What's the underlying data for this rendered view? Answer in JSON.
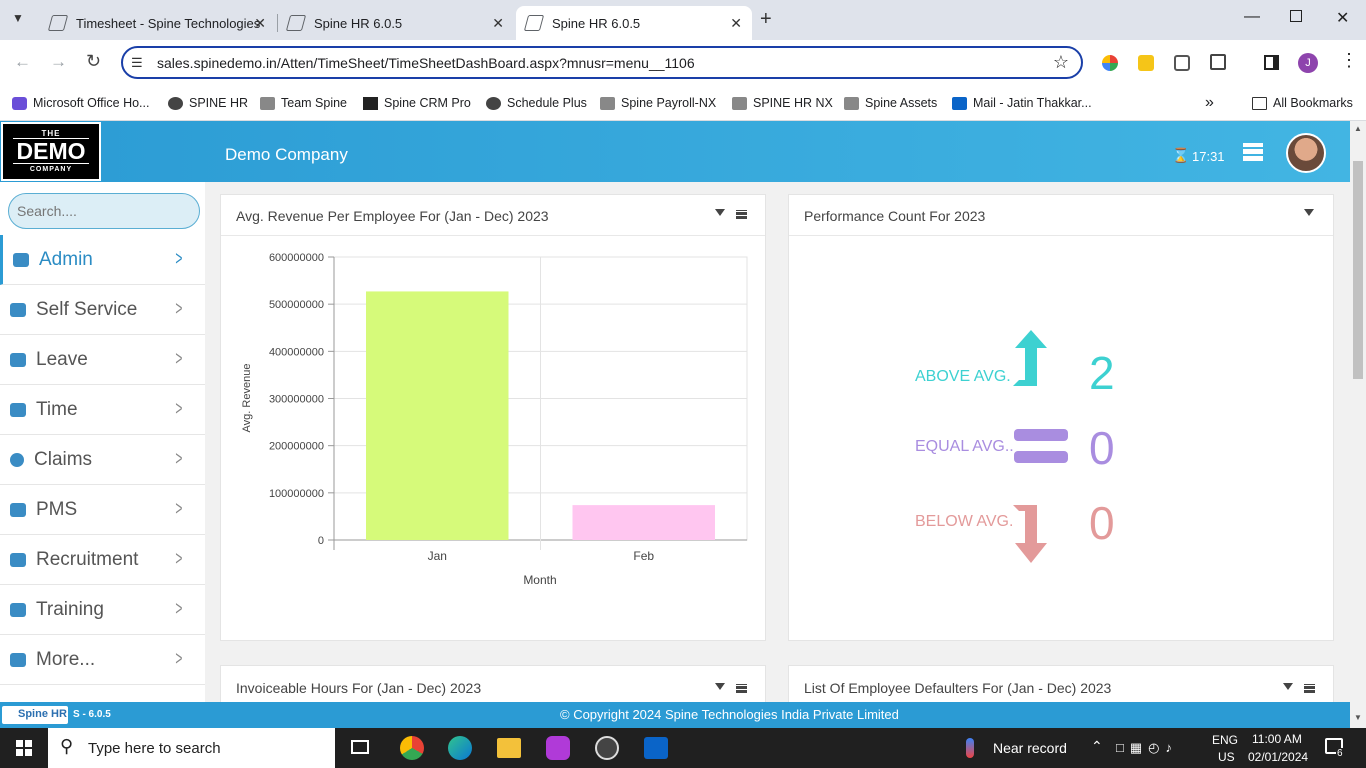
{
  "browser": {
    "tabs": [
      {
        "title": "Timesheet - Spine Technologies",
        "active": false
      },
      {
        "title": "Spine HR 6.0.5",
        "active": false
      },
      {
        "title": "Spine HR 6.0.5",
        "active": true
      }
    ],
    "url": "sales.spinedemo.in/Atten/TimeSheet/TimeSheetDashBoard.aspx?mnusr=menu__1106",
    "profile_initial": "J",
    "bookmarks": [
      "Microsoft Office Ho...",
      "SPINE HR",
      "Team Spine",
      "Spine CRM Pro",
      "Schedule Plus",
      "Spine Payroll-NX",
      "SPINE HR NX",
      "Spine Assets",
      "Mail - Jatin Thakkar..."
    ],
    "all_bookmarks": "All Bookmarks"
  },
  "app": {
    "logo_top": "THE",
    "logo_main": "DEMO",
    "logo_bottom": "COMPANY",
    "company": "Demo Company",
    "timer": "17:31",
    "search_placeholder": "Search....",
    "nav": [
      "Admin",
      "Self Service",
      "Leave",
      "Time",
      "Claims",
      "PMS",
      "Recruitment",
      "Training",
      "More..."
    ],
    "footer_brand": "Spine HR",
    "footer_version": "S - 6.0.5",
    "footer_copyright": "© Copyright 2024 Spine Technologies India Private Limited"
  },
  "cards": {
    "revenue_title": "Avg. Revenue Per Employee For (Jan - Dec) 2023",
    "performance_title": "Performance Count For 2023",
    "invoiceable_title": "Invoiceable Hours For (Jan - Dec) 2023",
    "defaulters_title": "List Of Employee Defaulters For (Jan - Dec) 2023"
  },
  "chart_data": {
    "type": "bar",
    "categories": [
      "Jan",
      "Feb"
    ],
    "values": [
      527000000,
      74000000
    ],
    "colors": [
      "#d6fa7a",
      "#ffc6f0"
    ],
    "xlabel": "Month",
    "ylabel": "Avg. Revenue",
    "ylim": [
      0,
      600000000
    ],
    "yticks": [
      "0",
      "100000000",
      "200000000",
      "300000000",
      "400000000",
      "500000000",
      "600000000"
    ],
    "grid": true
  },
  "performance": {
    "above_label": "ABOVE AVG.",
    "above_value": "2",
    "equal_label": "EQUAL AVG..",
    "equal_value": "0",
    "below_label": "BELOW AVG.",
    "below_value": "0",
    "above_color": "#3dd1d1",
    "equal_color": "#a98de0",
    "below_color": "#e39a9a"
  },
  "taskbar": {
    "search_placeholder": "Type here to search",
    "weather": "Near record",
    "lang1": "ENG",
    "lang2": "US",
    "time": "11:00 AM",
    "date": "02/01/2024",
    "notif_count": "6"
  }
}
